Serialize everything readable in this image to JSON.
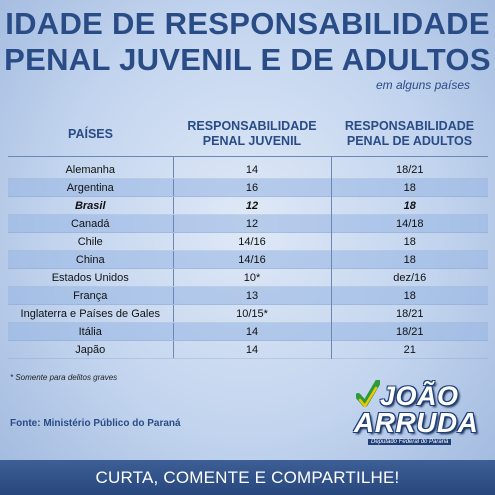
{
  "header": {
    "title_line1": "IDADE DE RESPONSABILIDADE",
    "title_line2": "PENAL JUVENIL E DE ADULTOS",
    "subtitle": "em alguns países"
  },
  "table": {
    "columns": [
      "PAÍSES",
      "RESPONSABILIDADE PENAL JUVENIL",
      "RESPONSABILIDADE PENAL DE ADULTOS"
    ],
    "rows": [
      [
        "Alemanha",
        "14",
        "18/21"
      ],
      [
        "Argentina",
        "16",
        "18"
      ],
      [
        "Brasil",
        "12",
        "18"
      ],
      [
        "Canadá",
        "12",
        "14/18"
      ],
      [
        "Chile",
        "14/16",
        "18"
      ],
      [
        "China",
        "14/16",
        "18"
      ],
      [
        "Estados Unidos",
        "10*",
        "dez/16"
      ],
      [
        "França",
        "13",
        "18"
      ],
      [
        "Inglaterra e Países de Gales",
        "10/15*",
        "18/21"
      ],
      [
        "Itália",
        "14",
        "18/21"
      ],
      [
        "Japão",
        "14",
        "21"
      ]
    ]
  },
  "footnote": "* Somente para delitos graves",
  "source": "Fonte: Ministério Público do Paraná",
  "logo": {
    "line1": "JOÃO",
    "line2": "ARRUDA",
    "tagline": "Deputado Federal do Paraná"
  },
  "footer": {
    "cta": "CURTA, COMENTE E COMPARTILHE!"
  },
  "colors": {
    "title": "#2a4c86",
    "row_shade": "#96b4e1",
    "footer_bar": "#2f5189",
    "logo_green": "#2e9a3e",
    "logo_yellow": "#f2c500"
  }
}
